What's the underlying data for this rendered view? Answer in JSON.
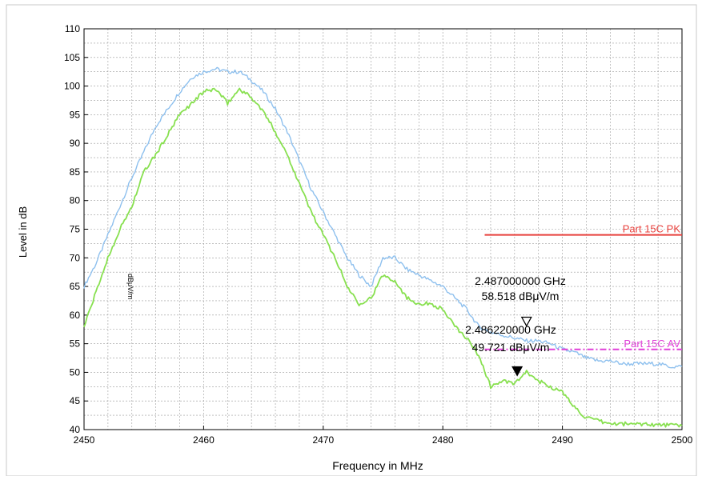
{
  "chart_data": {
    "type": "line",
    "xlabel": "Frequency in MHz",
    "ylabel": "Level in dB",
    "xlim": [
      2450,
      2500
    ],
    "ylim": [
      40,
      110
    ],
    "x_ticks": [
      "2450",
      "2460",
      "2470",
      "2480",
      "2490",
      "2500"
    ],
    "y_ticks": [
      "40",
      "45",
      "50",
      "55",
      "60",
      "65",
      "70",
      "75",
      "80",
      "85",
      "90",
      "95",
      "100",
      "105",
      "110"
    ],
    "unit_glyph": "dBμV/m",
    "grid": true,
    "series": [
      {
        "name": "",
        "color": "#8ec0ee",
        "x": [
          2450,
          2451,
          2452,
          2453,
          2454,
          2455,
          2456,
          2457,
          2458,
          2459,
          2460,
          2461,
          2462,
          2463,
          2464,
          2465,
          2466,
          2467,
          2468,
          2469,
          2470,
          2471,
          2472,
          2473,
          2474,
          2475,
          2476,
          2477,
          2478,
          2479,
          2480,
          2481,
          2482,
          2483,
          2484,
          2485,
          2486,
          2487,
          2488,
          2489,
          2490,
          2491,
          2492,
          2493,
          2494,
          2495,
          2496,
          2497,
          2498,
          2499,
          2500
        ],
        "values": [
          65,
          69,
          74,
          79,
          84,
          88.5,
          93,
          96,
          99,
          101.5,
          102.5,
          103,
          102.5,
          102.5,
          101,
          99,
          96,
          92,
          87,
          82,
          78,
          74,
          70,
          67,
          65,
          70,
          70,
          68,
          67,
          66,
          65,
          63,
          61,
          58,
          57,
          56.5,
          56,
          55.5,
          55.5,
          55,
          54,
          53.5,
          52.5,
          52,
          52,
          51.5,
          51.5,
          51.5,
          51.5,
          51,
          51
        ]
      },
      {
        "name": "",
        "color": "#88e050",
        "x": [
          2450,
          2451,
          2452,
          2453,
          2454,
          2455,
          2456,
          2457,
          2458,
          2459,
          2460,
          2461,
          2462,
          2463,
          2464,
          2465,
          2466,
          2467,
          2468,
          2469,
          2470,
          2471,
          2472,
          2473,
          2474,
          2475,
          2476,
          2477,
          2478,
          2479,
          2480,
          2481,
          2482,
          2483,
          2484,
          2485,
          2486,
          2487,
          2488,
          2489,
          2490,
          2491,
          2492,
          2493,
          2494,
          2495,
          2496,
          2497,
          2498,
          2499,
          2500
        ],
        "values": [
          58,
          64,
          70,
          75,
          79,
          85,
          88,
          91.5,
          95,
          97,
          99,
          99.5,
          97,
          99.5,
          98,
          95.5,
          92,
          88,
          83,
          78,
          74,
          70,
          65,
          62,
          63,
          67,
          66,
          63,
          62,
          62,
          61,
          58,
          56,
          53,
          47.5,
          48.5,
          48,
          50,
          48.5,
          47.5,
          46.5,
          44,
          42,
          41.5,
          41,
          41,
          41,
          41,
          40.8,
          40.8,
          40.7
        ]
      }
    ],
    "limit_lines": [
      {
        "label": "Part 15C PK",
        "value": 74,
        "x_start": 2483.5,
        "color": "#e8403c",
        "style": "solid"
      },
      {
        "label": "Part 15C  AV",
        "value": 54,
        "x_start": 2483.5,
        "color": "#e040d8",
        "style": "dashdot"
      }
    ],
    "markers": [
      {
        "x": 2487,
        "y": 58.518,
        "freq_label": "2.487000000 GHz",
        "level_label": "58.518 dBμV/m",
        "filled": false
      },
      {
        "x": 2486.22,
        "y": 49.721,
        "freq_label": "2.486220000 GHz",
        "level_label": "49.721 dBμV/m",
        "filled": true
      }
    ]
  }
}
